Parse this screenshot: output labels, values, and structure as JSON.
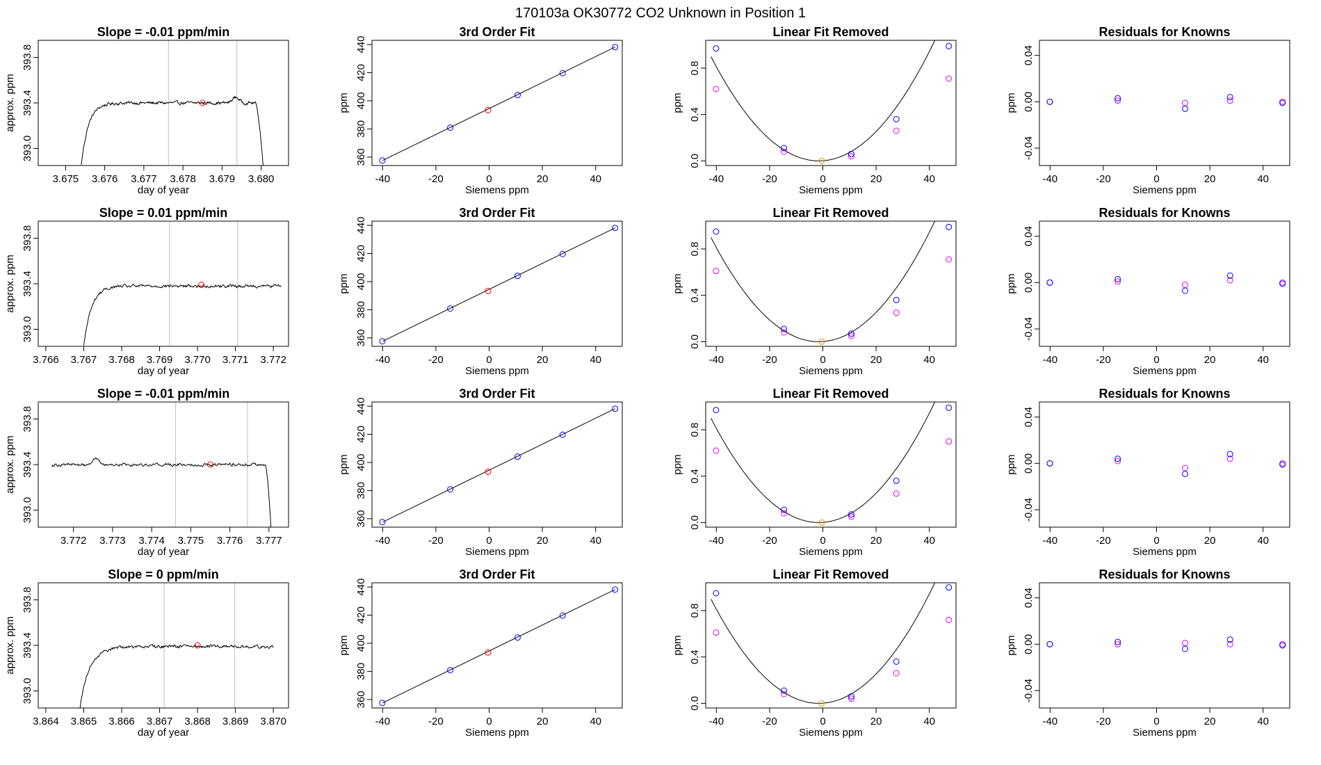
{
  "figure_title": "170103a      OK30772    CO2 Unknown in Position  1",
  "colors": {
    "trace": "#000000",
    "highlight": "#ff0000",
    "known": "#0000ff",
    "cubic": "#ee00ee",
    "removed": "#ff8c00",
    "grid": "#bebebe"
  },
  "chart_data": [
    {
      "type": "line",
      "row": 1,
      "title": "Slope =  -0.01  ppm/min",
      "xlabel": "day of year",
      "ylabel": "approx. ppm",
      "xlim": [
        3.6743,
        3.6807
      ],
      "ylim": [
        392.85,
        393.95
      ],
      "xticks": [
        "3.675",
        "3.676",
        "3.677",
        "3.678",
        "3.679",
        "3.680"
      ],
      "yticks": [
        "393.0",
        "393.4",
        "393.8"
      ],
      "vlines": [
        3.67763,
        3.67938
      ],
      "point": {
        "x": 3.6785,
        "y": 393.4
      },
      "trace": {
        "start": 3.6754,
        "end": 3.68005,
        "start_y": 392.85,
        "plateau": 393.4,
        "rise_tau": 0.00018,
        "drop_at": 3.67985,
        "drop_to": 392.85,
        "bump": {
          "x": 3.67935,
          "y": 0.05
        }
      }
    },
    {
      "type": "scatter",
      "row": 1,
      "title": "3rd Order Fit",
      "xlabel": "Siemens ppm",
      "ylabel": "ppm",
      "xlim": [
        -44,
        50
      ],
      "ylim": [
        354,
        443
      ],
      "xticks": [
        "-40",
        "-20",
        "0",
        "20",
        "40"
      ],
      "yticks": [
        "360",
        "380",
        "400",
        "420",
        "440"
      ],
      "fit_line": [
        [
          -40,
          357.6
        ],
        [
          47.3,
          438.2
        ]
      ],
      "knowns": {
        "x": [
          -40.1,
          -14.6,
          10.7,
          27.6,
          47.3
        ],
        "y": [
          357.6,
          380.9,
          404.1,
          419.7,
          438.2
        ]
      },
      "unknown": {
        "x": -0.4,
        "y": 393.4
      }
    },
    {
      "type": "scatter",
      "row": 1,
      "title": "Linear Fit Removed",
      "xlabel": "Siemens ppm",
      "ylabel": "ppm",
      "xlim": [
        -44,
        50
      ],
      "ylim": [
        -0.04,
        1.04
      ],
      "xticks": [
        "-40",
        "-20",
        "0",
        "20",
        "40"
      ],
      "yticks": [
        "0.0",
        "0.4",
        "0.8"
      ],
      "curve": {
        "vertex": -1.5,
        "a": 0.000548
      },
      "knowns": {
        "x": [
          -40.1,
          -14.6,
          10.7,
          27.6,
          47.3
        ],
        "y": [
          0.97,
          0.11,
          0.06,
          0.36,
          0.99
        ]
      },
      "cubic_pts": {
        "x": [
          -40.1,
          -14.6,
          10.7,
          27.6,
          47.3
        ],
        "y": [
          0.62,
          0.08,
          0.04,
          0.26,
          0.71
        ]
      },
      "unknown": {
        "x": -0.4,
        "y": 0.0
      }
    },
    {
      "type": "scatter",
      "row": 1,
      "title": "Residuals for Knowns",
      "xlabel": "Siemens ppm",
      "ylabel": "ppm",
      "xlim": [
        -44,
        50
      ],
      "ylim": [
        -0.055,
        0.053
      ],
      "xticks": [
        "-40",
        "-20",
        "0",
        "20",
        "40"
      ],
      "yticks": [
        "-0.04",
        "0.00",
        "0.04"
      ],
      "knowns": {
        "x": [
          -40.1,
          -14.6,
          10.7,
          27.6,
          47.3
        ],
        "y": [
          0.0,
          0.003,
          -0.006,
          0.004,
          -0.001
        ]
      },
      "cubic_pts": {
        "x": [
          -40.1,
          -14.6,
          10.7,
          27.6,
          47.3
        ],
        "y": [
          0.0,
          0.001,
          -0.001,
          0.001,
          0.0
        ]
      }
    },
    {
      "type": "line",
      "row": 2,
      "title": "Slope =  0.01  ppm/min",
      "xlabel": "day of year",
      "ylabel": "approx. ppm",
      "xlim": [
        3.7658,
        3.7724
      ],
      "ylim": [
        392.85,
        393.95
      ],
      "xticks": [
        "3.766",
        "3.767",
        "3.768",
        "3.769",
        "3.770",
        "3.771",
        "3.772"
      ],
      "yticks": [
        "393.0",
        "393.4",
        "393.8"
      ],
      "vlines": [
        3.76926,
        3.77106
      ],
      "point": {
        "x": 3.7701,
        "y": 393.39
      },
      "trace": {
        "start": 3.767,
        "end": 3.7722,
        "start_y": 392.85,
        "plateau": 393.38,
        "rise_tau": 0.0002,
        "drop_at": null,
        "drop_to": null,
        "bump": null
      }
    },
    {
      "type": "scatter",
      "row": 2,
      "title": "3rd Order Fit",
      "xlabel": "Siemens ppm",
      "ylabel": "ppm",
      "xlim": [
        -44,
        50
      ],
      "ylim": [
        354,
        443
      ],
      "xticks": [
        "-40",
        "-20",
        "0",
        "20",
        "40"
      ],
      "yticks": [
        "360",
        "380",
        "400",
        "420",
        "440"
      ],
      "fit_line": [
        [
          -40,
          357.6
        ],
        [
          47.3,
          438.2
        ]
      ],
      "knowns": {
        "x": [
          -40.1,
          -14.6,
          10.7,
          27.6,
          47.3
        ],
        "y": [
          357.6,
          380.9,
          404.1,
          419.7,
          438.2
        ]
      },
      "unknown": {
        "x": -0.4,
        "y": 393.4
      }
    },
    {
      "type": "scatter",
      "row": 2,
      "title": "Linear Fit Removed",
      "xlabel": "Siemens ppm",
      "ylabel": "ppm",
      "xlim": [
        -44,
        50
      ],
      "ylim": [
        -0.04,
        1.04
      ],
      "xticks": [
        "-40",
        "-20",
        "0",
        "20",
        "40"
      ],
      "yticks": [
        "0.0",
        "0.4",
        "0.8"
      ],
      "curve": {
        "vertex": -1.5,
        "a": 0.000548
      },
      "knowns": {
        "x": [
          -40.1,
          -14.6,
          10.7,
          27.6,
          47.3
        ],
        "y": [
          0.95,
          0.11,
          0.07,
          0.36,
          0.99
        ]
      },
      "cubic_pts": {
        "x": [
          -40.1,
          -14.6,
          10.7,
          27.6,
          47.3
        ],
        "y": [
          0.61,
          0.08,
          0.05,
          0.25,
          0.71
        ]
      },
      "unknown": {
        "x": -0.4,
        "y": 0.0
      }
    },
    {
      "type": "scatter",
      "row": 2,
      "title": "Residuals for Knowns",
      "xlabel": "Siemens ppm",
      "ylabel": "ppm",
      "xlim": [
        -44,
        50
      ],
      "ylim": [
        -0.055,
        0.053
      ],
      "xticks": [
        "-40",
        "-20",
        "0",
        "20",
        "40"
      ],
      "yticks": [
        "-0.04",
        "0.00",
        "0.04"
      ],
      "knowns": {
        "x": [
          -40.1,
          -14.6,
          10.7,
          27.6,
          47.3
        ],
        "y": [
          0.0,
          0.003,
          -0.007,
          0.006,
          -0.001
        ]
      },
      "cubic_pts": {
        "x": [
          -40.1,
          -14.6,
          10.7,
          27.6,
          47.3
        ],
        "y": [
          0.0,
          0.001,
          -0.002,
          0.002,
          0.0
        ]
      }
    },
    {
      "type": "line",
      "row": 3,
      "title": "Slope =  -0.01  ppm/min",
      "xlabel": "day of year",
      "ylabel": "approx. ppm",
      "xlim": [
        3.7711,
        3.7775
      ],
      "ylim": [
        392.85,
        393.95
      ],
      "xticks": [
        "3.772",
        "3.773",
        "3.774",
        "3.775",
        "3.776",
        "3.777"
      ],
      "yticks": [
        "393.0",
        "393.4",
        "393.8"
      ],
      "vlines": [
        3.77461,
        3.77645
      ],
      "point": {
        "x": 3.7755,
        "y": 393.4
      },
      "trace": {
        "start": 3.77145,
        "end": 3.77705,
        "start_y": 393.39,
        "plateau": 393.4,
        "rise_tau": 1e-05,
        "drop_at": 3.7769,
        "drop_to": 392.85,
        "bump": {
          "x": 3.77255,
          "y": 0.05
        }
      }
    },
    {
      "type": "scatter",
      "row": 3,
      "title": "3rd Order Fit",
      "xlabel": "Siemens ppm",
      "ylabel": "ppm",
      "xlim": [
        -44,
        50
      ],
      "ylim": [
        354,
        443
      ],
      "xticks": [
        "-40",
        "-20",
        "0",
        "20",
        "40"
      ],
      "yticks": [
        "360",
        "380",
        "400",
        "420",
        "440"
      ],
      "fit_line": [
        [
          -40,
          357.6
        ],
        [
          47.3,
          438.2
        ]
      ],
      "knowns": {
        "x": [
          -40.1,
          -14.6,
          10.7,
          27.6,
          47.3
        ],
        "y": [
          357.6,
          380.9,
          404.1,
          419.7,
          438.2
        ]
      },
      "unknown": {
        "x": -0.4,
        "y": 393.4
      }
    },
    {
      "type": "scatter",
      "row": 3,
      "title": "Linear Fit Removed",
      "xlabel": "Siemens ppm",
      "ylabel": "ppm",
      "xlim": [
        -44,
        50
      ],
      "ylim": [
        -0.04,
        1.04
      ],
      "xticks": [
        "-40",
        "-20",
        "0",
        "20",
        "40"
      ],
      "yticks": [
        "0.0",
        "0.4",
        "0.8"
      ],
      "curve": {
        "vertex": -1.5,
        "a": 0.000548
      },
      "knowns": {
        "x": [
          -40.1,
          -14.6,
          10.7,
          27.6,
          47.3
        ],
        "y": [
          0.97,
          0.11,
          0.07,
          0.36,
          0.99
        ]
      },
      "cubic_pts": {
        "x": [
          -40.1,
          -14.6,
          10.7,
          27.6,
          47.3
        ],
        "y": [
          0.62,
          0.08,
          0.05,
          0.25,
          0.7
        ]
      },
      "unknown": {
        "x": -0.4,
        "y": 0.0
      }
    },
    {
      "type": "scatter",
      "row": 3,
      "title": "Residuals for Knowns",
      "xlabel": "Siemens ppm",
      "ylabel": "ppm",
      "xlim": [
        -44,
        50
      ],
      "ylim": [
        -0.055,
        0.053
      ],
      "xticks": [
        "-40",
        "-20",
        "0",
        "20",
        "40"
      ],
      "yticks": [
        "-0.04",
        "0.00",
        "0.04"
      ],
      "knowns": {
        "x": [
          -40.1,
          -14.6,
          10.7,
          27.6,
          47.3
        ],
        "y": [
          0.0,
          0.004,
          -0.009,
          0.008,
          -0.001
        ]
      },
      "cubic_pts": {
        "x": [
          -40.1,
          -14.6,
          10.7,
          27.6,
          47.3
        ],
        "y": [
          0.0,
          0.002,
          -0.004,
          0.004,
          0.0
        ]
      }
    },
    {
      "type": "line",
      "row": 4,
      "title": "Slope =  0  ppm/min",
      "xlabel": "day of year",
      "ylabel": "approx. ppm",
      "xlim": [
        3.8638,
        3.8704
      ],
      "ylim": [
        392.85,
        393.95
      ],
      "xticks": [
        "3.864",
        "3.865",
        "3.866",
        "3.867",
        "3.868",
        "3.869",
        "3.870"
      ],
      "yticks": [
        "393.0",
        "393.4",
        "393.8"
      ],
      "vlines": [
        3.86712,
        3.86898
      ],
      "point": {
        "x": 3.868,
        "y": 393.4
      },
      "trace": {
        "start": 3.8649,
        "end": 3.87,
        "start_y": 392.85,
        "plateau": 393.39,
        "rise_tau": 0.00025,
        "drop_at": null,
        "drop_to": null,
        "bump": null
      }
    },
    {
      "type": "scatter",
      "row": 4,
      "title": "3rd Order Fit",
      "xlabel": "Siemens ppm",
      "ylabel": "ppm",
      "xlim": [
        -44,
        50
      ],
      "ylim": [
        354,
        443
      ],
      "xticks": [
        "-40",
        "-20",
        "0",
        "20",
        "40"
      ],
      "yticks": [
        "360",
        "380",
        "400",
        "420",
        "440"
      ],
      "fit_line": [
        [
          -40,
          357.6
        ],
        [
          47.3,
          438.2
        ]
      ],
      "knowns": {
        "x": [
          -40.1,
          -14.6,
          10.7,
          27.6,
          47.3
        ],
        "y": [
          357.6,
          380.9,
          404.1,
          419.7,
          438.2
        ]
      },
      "unknown": {
        "x": -0.4,
        "y": 393.4
      }
    },
    {
      "type": "scatter",
      "row": 4,
      "title": "Linear Fit Removed",
      "xlabel": "Siemens ppm",
      "ylabel": "ppm",
      "xlim": [
        -44,
        50
      ],
      "ylim": [
        -0.04,
        1.04
      ],
      "xticks": [
        "-40",
        "-20",
        "0",
        "20",
        "40"
      ],
      "yticks": [
        "0.0",
        "0.4",
        "0.8"
      ],
      "curve": {
        "vertex": -1.5,
        "a": 0.000548
      },
      "knowns": {
        "x": [
          -40.1,
          -14.6,
          10.7,
          27.6,
          47.3
        ],
        "y": [
          0.95,
          0.11,
          0.06,
          0.36,
          1.0
        ]
      },
      "cubic_pts": {
        "x": [
          -40.1,
          -14.6,
          10.7,
          27.6,
          47.3
        ],
        "y": [
          0.61,
          0.08,
          0.04,
          0.26,
          0.72
        ]
      },
      "unknown": {
        "x": -0.4,
        "y": 0.0
      }
    },
    {
      "type": "scatter",
      "row": 4,
      "title": "Residuals for Knowns",
      "xlabel": "Siemens ppm",
      "ylabel": "ppm",
      "xlim": [
        -44,
        50
      ],
      "ylim": [
        -0.055,
        0.053
      ],
      "xticks": [
        "-40",
        "-20",
        "0",
        "20",
        "40"
      ],
      "yticks": [
        "-0.04",
        "0.00",
        "0.04"
      ],
      "knowns": {
        "x": [
          -40.1,
          -14.6,
          10.7,
          27.6,
          47.3
        ],
        "y": [
          0.0,
          0.002,
          -0.004,
          0.004,
          -0.001
        ]
      },
      "cubic_pts": {
        "x": [
          -40.1,
          -14.6,
          10.7,
          27.6,
          47.3
        ],
        "y": [
          0.0,
          0.0,
          0.001,
          0.0,
          0.0
        ]
      }
    }
  ]
}
